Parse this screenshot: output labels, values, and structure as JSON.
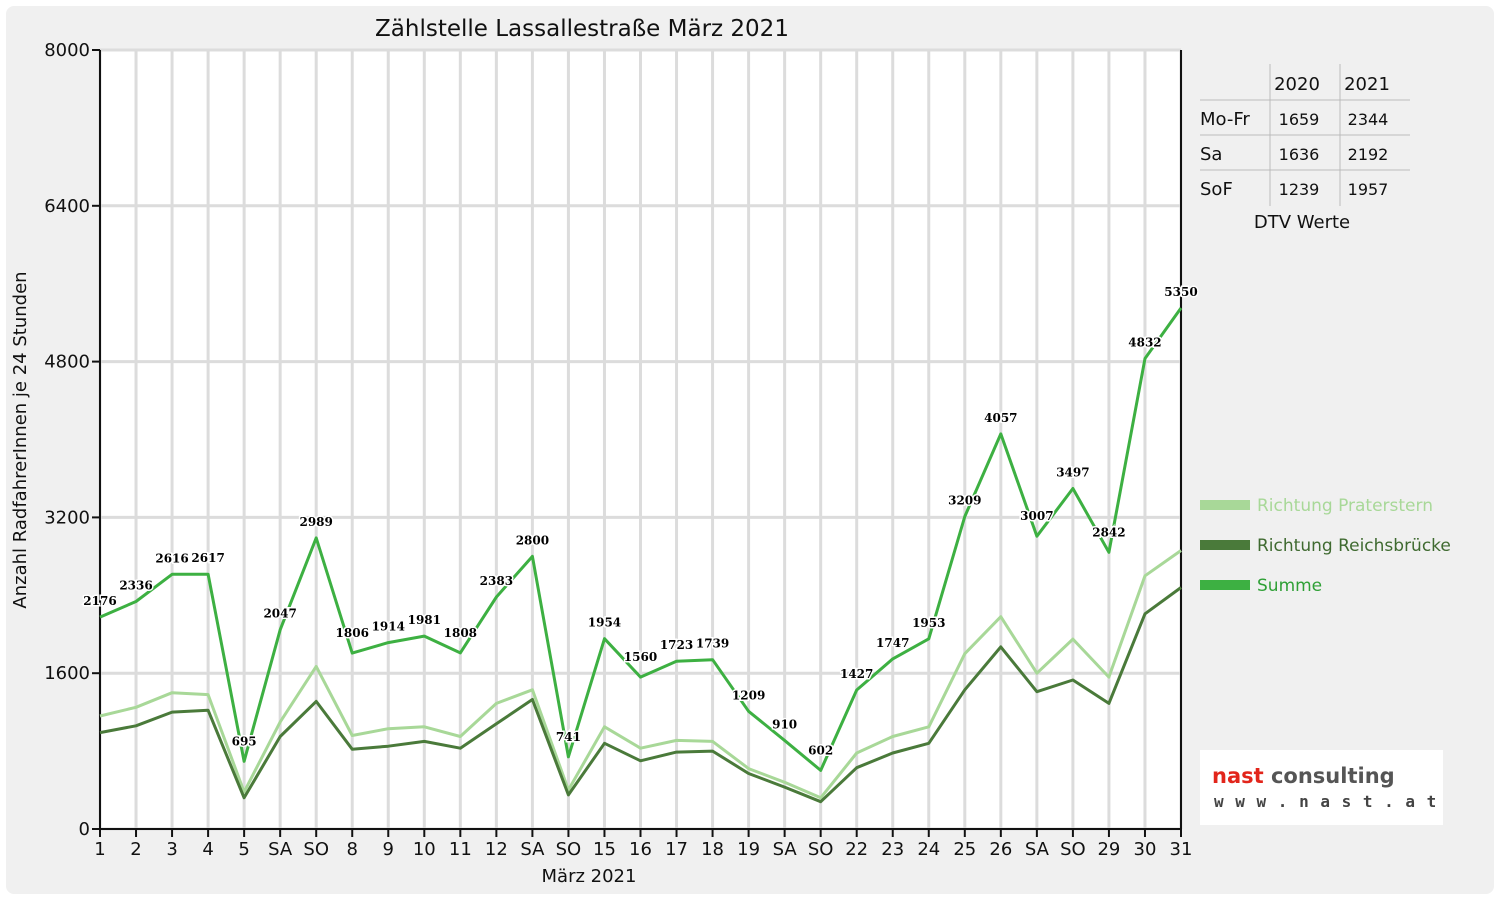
{
  "chart_data": {
    "type": "line",
    "title": "Zählstelle Lassallestraße März 2021",
    "xlabel": "März 2021",
    "ylabel": "Anzahl RadfahrerInnen je 24 Stunden",
    "ylim": [
      0,
      8000
    ],
    "yticks": [
      "0",
      "1600",
      "3200",
      "4800",
      "6400",
      "8000"
    ],
    "grid": true,
    "legend_position": "right",
    "categories": [
      "1",
      "2",
      "3",
      "4",
      "5",
      "SA",
      "SO",
      "8",
      "9",
      "10",
      "11",
      "12",
      "SA",
      "SO",
      "15",
      "16",
      "17",
      "18",
      "19",
      "SA",
      "SO",
      "22",
      "23",
      "24",
      "25",
      "26",
      "SA",
      "SO",
      "29",
      "30",
      "31"
    ],
    "highlight_categories": [
      "SO"
    ],
    "highlight_color": "#e00000",
    "series": [
      {
        "name": "Richtung Praterstern",
        "color": "#a8d898",
        "values": [
          1160,
          1250,
          1400,
          1380,
          380,
          1100,
          1670,
          960,
          1030,
          1050,
          950,
          1290,
          1430,
          400,
          1050,
          830,
          910,
          900,
          620,
          480,
          320,
          780,
          950,
          1050,
          1800,
          2180,
          1600,
          1950,
          1560,
          2600,
          2860
        ]
      },
      {
        "name": "Richtung Reichsbrücke",
        "color": "#4a7a3a",
        "values": [
          990,
          1060,
          1200,
          1220,
          320,
          950,
          1310,
          820,
          850,
          900,
          830,
          1080,
          1330,
          350,
          880,
          700,
          790,
          800,
          570,
          430,
          280,
          630,
          780,
          880,
          1430,
          1870,
          1410,
          1530,
          1290,
          2210,
          2480
        ]
      },
      {
        "name": "Summe",
        "color": "#3db042",
        "values": [
          2176,
          2336,
          2616,
          2617,
          695,
          2047,
          2989,
          1806,
          1914,
          1981,
          1808,
          2383,
          2800,
          741,
          1954,
          1560,
          1723,
          1739,
          1209,
          910,
          602,
          1427,
          1747,
          1953,
          3209,
          4057,
          3007,
          3497,
          2842,
          4832,
          5350
        ]
      }
    ],
    "data_labels": [
      "2176",
      "2336",
      "2616",
      "2617",
      "695",
      "2047",
      "2989",
      "1806",
      "1914",
      "1981",
      "1808",
      "2383",
      "2800",
      "741",
      "1954",
      "1560",
      "1723",
      "1739",
      "1209",
      "910",
      "602",
      "1427",
      "1747",
      "1953",
      "3209",
      "4057",
      "3007",
      "3497",
      "2842",
      "4832",
      "5350"
    ]
  },
  "dtv_table": {
    "caption": "DTV Werte",
    "headers": [
      "",
      "2020",
      "2021"
    ],
    "rows": [
      {
        "label": "Mo-Fr",
        "v2020": "1659",
        "v2021": "2344"
      },
      {
        "label": "Sa",
        "v2020": "1636",
        "v2021": "2192"
      },
      {
        "label": "SoF",
        "v2020": "1239",
        "v2021": "1957"
      }
    ]
  },
  "logo": {
    "word1": "nast",
    "word2": " consulting",
    "url": "w w w . n a s t . a t"
  }
}
